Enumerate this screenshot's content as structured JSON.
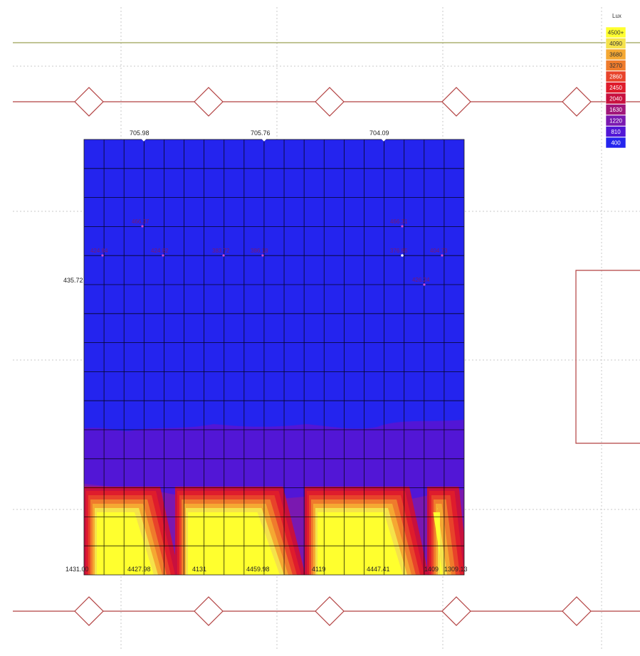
{
  "chart_data": {
    "type": "heatmap",
    "unit_label": "Lux",
    "legend": [
      {
        "label": "4500+",
        "color": "#ffff2e"
      },
      {
        "label": "4090",
        "color": "#f5e24a"
      },
      {
        "label": "3680",
        "color": "#f5a832"
      },
      {
        "label": "3270",
        "color": "#ef7b2c"
      },
      {
        "label": "2860",
        "color": "#e8432a"
      },
      {
        "label": "2450",
        "color": "#df1c2c"
      },
      {
        "label": "2040",
        "color": "#c8103e"
      },
      {
        "label": "1630",
        "color": "#a1177a"
      },
      {
        "label": "1220",
        "color": "#7a18b0"
      },
      {
        "label": "810",
        "color": "#5216d6"
      },
      {
        "label": "400",
        "color": "#2424ee"
      }
    ],
    "top_values": [
      "705.98",
      "705.76",
      "704.09"
    ],
    "left_value": "435.72",
    "inner_values": [
      "466.37",
      "424.84",
      "424.82",
      "383.72",
      "386.18",
      "466.31",
      "376.85",
      "404.73",
      "426.24"
    ],
    "bottom_values": [
      "1431.00",
      "4427.98",
      "4131",
      "4459.98",
      "4119",
      "4447.41",
      "1409",
      "1309.13"
    ]
  }
}
